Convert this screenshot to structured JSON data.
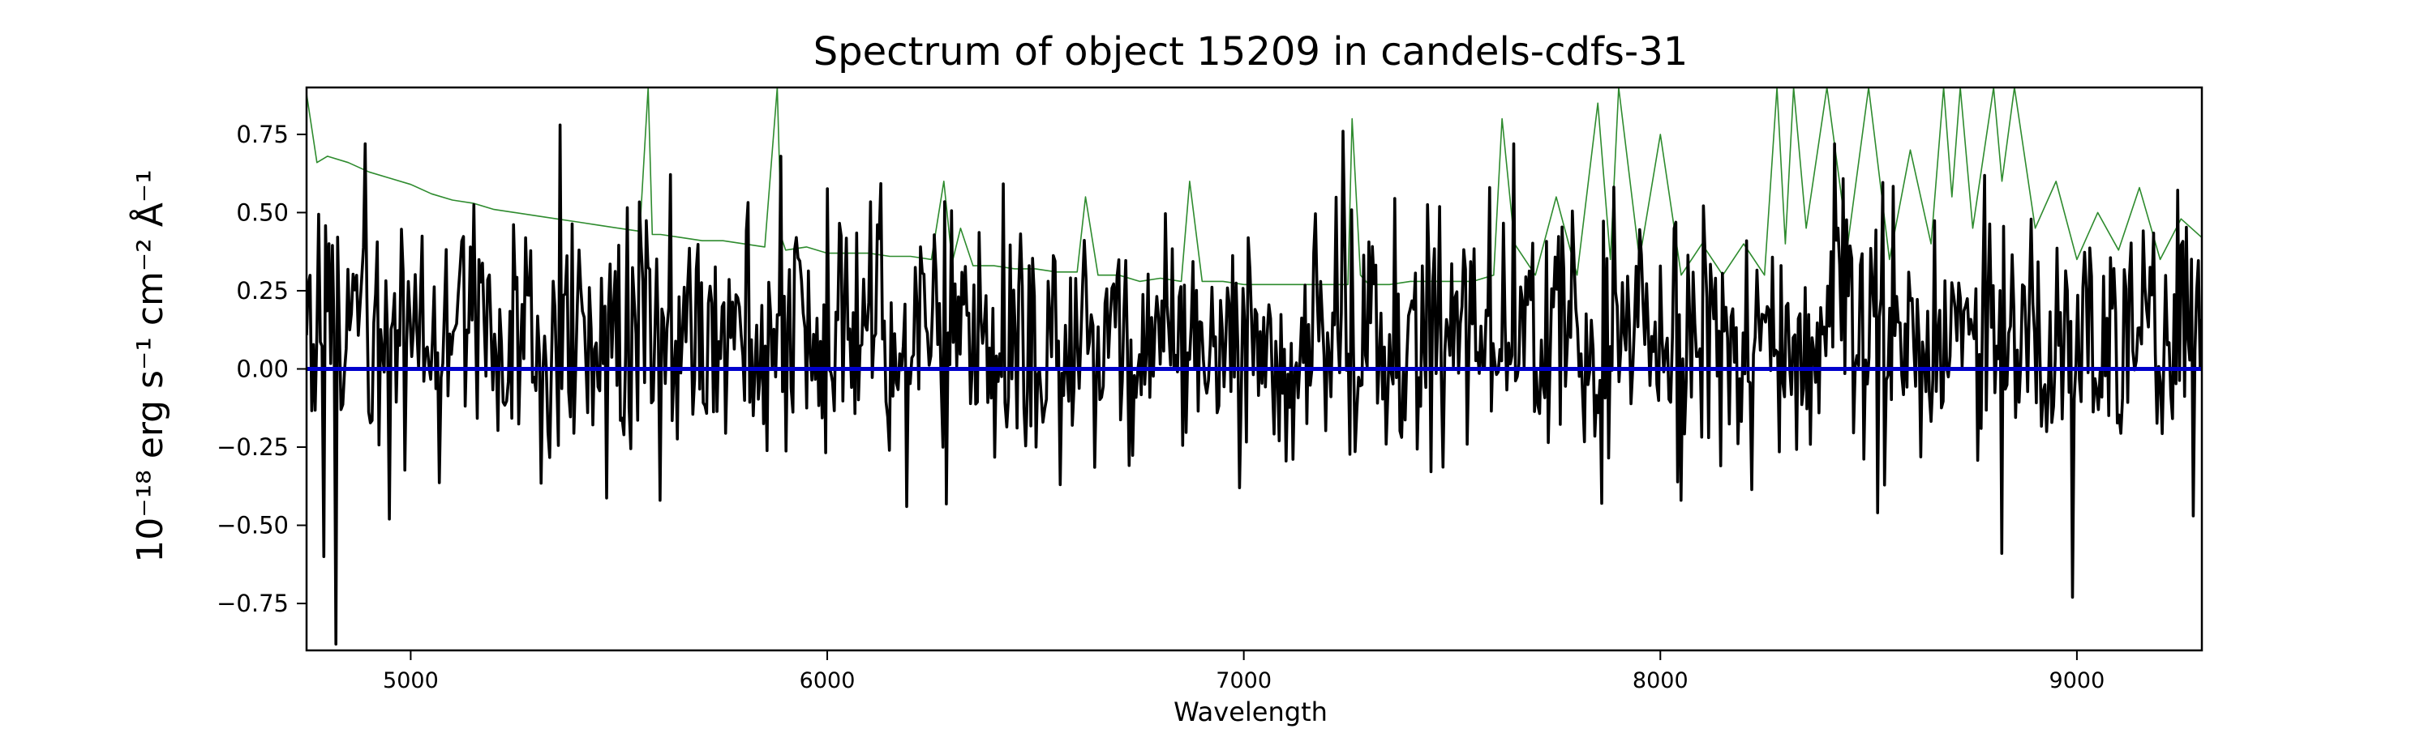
{
  "chart_data": {
    "type": "line",
    "title": "Spectrum of object 15209 in candels-cdfs-31",
    "xlabel": "Wavelength",
    "ylabel": "10⁻¹⁸ erg s⁻¹ cm⁻² Å⁻¹",
    "xlim": [
      4750,
      9300
    ],
    "ylim": [
      -0.9,
      0.9
    ],
    "xticks": [
      5000,
      6000,
      7000,
      8000,
      9000
    ],
    "xtick_labels": [
      "5000",
      "6000",
      "7000",
      "8000",
      "9000"
    ],
    "yticks": [
      -0.75,
      -0.5,
      -0.25,
      0.0,
      0.25,
      0.5,
      0.75
    ],
    "ytick_labels": [
      "−0.75",
      "−0.50",
      "−0.25",
      "0.00",
      "0.25",
      "0.50",
      "0.75"
    ],
    "grid": false,
    "series": [
      {
        "color": "#2e8b2e",
        "style": "thin-line",
        "x": [
          4750,
          4775,
          4800,
          4850,
          4900,
          4950,
          5000,
          5050,
          5100,
          5150,
          5200,
          5250,
          5300,
          5350,
          5400,
          5450,
          5500,
          5550,
          5570,
          5580,
          5600,
          5650,
          5700,
          5750,
          5800,
          5850,
          5880,
          5890,
          5900,
          5950,
          6000,
          6050,
          6100,
          6150,
          6200,
          6250,
          6280,
          6300,
          6320,
          6350,
          6400,
          6450,
          6500,
          6550,
          6600,
          6620,
          6650,
          6700,
          6750,
          6800,
          6850,
          6870,
          6900,
          6950,
          7000,
          7050,
          7100,
          7150,
          7200,
          7250,
          7260,
          7280,
          7300,
          7350,
          7400,
          7450,
          7500,
          7550,
          7600,
          7620,
          7650,
          7700,
          7750,
          7800,
          7850,
          7880,
          7900,
          7950,
          8000,
          8050,
          8100,
          8150,
          8200,
          8250,
          8280,
          8300,
          8320,
          8350,
          8400,
          8450,
          8500,
          8550,
          8600,
          8650,
          8680,
          8700,
          8720,
          8750,
          8800,
          8820,
          8850,
          8900,
          8950,
          9000,
          9050,
          9100,
          9150,
          9200,
          9250,
          9300
        ],
        "y": [
          0.88,
          0.66,
          0.68,
          0.66,
          0.63,
          0.61,
          0.59,
          0.56,
          0.54,
          0.53,
          0.51,
          0.5,
          0.49,
          0.48,
          0.47,
          0.46,
          0.45,
          0.44,
          0.9,
          0.43,
          0.43,
          0.42,
          0.41,
          0.41,
          0.4,
          0.39,
          0.9,
          0.42,
          0.38,
          0.39,
          0.37,
          0.37,
          0.37,
          0.36,
          0.36,
          0.35,
          0.6,
          0.34,
          0.45,
          0.33,
          0.33,
          0.32,
          0.32,
          0.31,
          0.31,
          0.55,
          0.3,
          0.3,
          0.28,
          0.29,
          0.28,
          0.6,
          0.28,
          0.28,
          0.27,
          0.27,
          0.27,
          0.27,
          0.27,
          0.27,
          0.8,
          0.3,
          0.27,
          0.27,
          0.28,
          0.28,
          0.28,
          0.28,
          0.3,
          0.8,
          0.4,
          0.3,
          0.55,
          0.3,
          0.85,
          0.35,
          0.9,
          0.35,
          0.75,
          0.3,
          0.4,
          0.3,
          0.4,
          0.3,
          0.9,
          0.4,
          0.9,
          0.45,
          0.9,
          0.4,
          0.9,
          0.35,
          0.7,
          0.4,
          0.9,
          0.55,
          0.9,
          0.45,
          0.9,
          0.6,
          0.9,
          0.45,
          0.6,
          0.35,
          0.5,
          0.38,
          0.58,
          0.35,
          0.48,
          0.42
        ]
      },
      {
        "color": "#000000",
        "style": "noisy-spectrum",
        "x_start": 4750,
        "x_end": 9300,
        "points": 1100,
        "baseline_x": [
          4750,
          4850,
          5000,
          5200,
          5500,
          5800,
          6000,
          6200,
          6500,
          6800,
          7000,
          7200,
          7500,
          7800,
          8000,
          8200,
          8500,
          8800,
          9000,
          9300
        ],
        "baseline_y": [
          0.12,
          0.1,
          0.1,
          0.08,
          0.1,
          0.1,
          0.11,
          0.1,
          0.09,
          0.08,
          0.06,
          0.07,
          0.09,
          0.1,
          0.1,
          0.1,
          0.1,
          0.1,
          0.08,
          0.06
        ],
        "noise_amplitude": 0.2,
        "extremes_x": [
          4820,
          4790,
          4890,
          4950,
          5360,
          5600,
          5890,
          6190,
          6560,
          6990,
          7240,
          7590,
          7650,
          7860,
          8050,
          8420,
          8520,
          8820,
          8990,
          9280
        ],
        "extremes_y": [
          -0.88,
          -0.6,
          0.72,
          -0.48,
          0.78,
          -0.42,
          0.68,
          -0.44,
          -0.37,
          -0.38,
          0.76,
          0.58,
          0.72,
          -0.43,
          -0.42,
          0.72,
          -0.46,
          -0.59,
          -0.73,
          -0.47
        ]
      },
      {
        "color": "#0000cc",
        "style": "flat-line",
        "x": [
          4750,
          9300
        ],
        "y": [
          0.0,
          0.0
        ]
      }
    ]
  }
}
